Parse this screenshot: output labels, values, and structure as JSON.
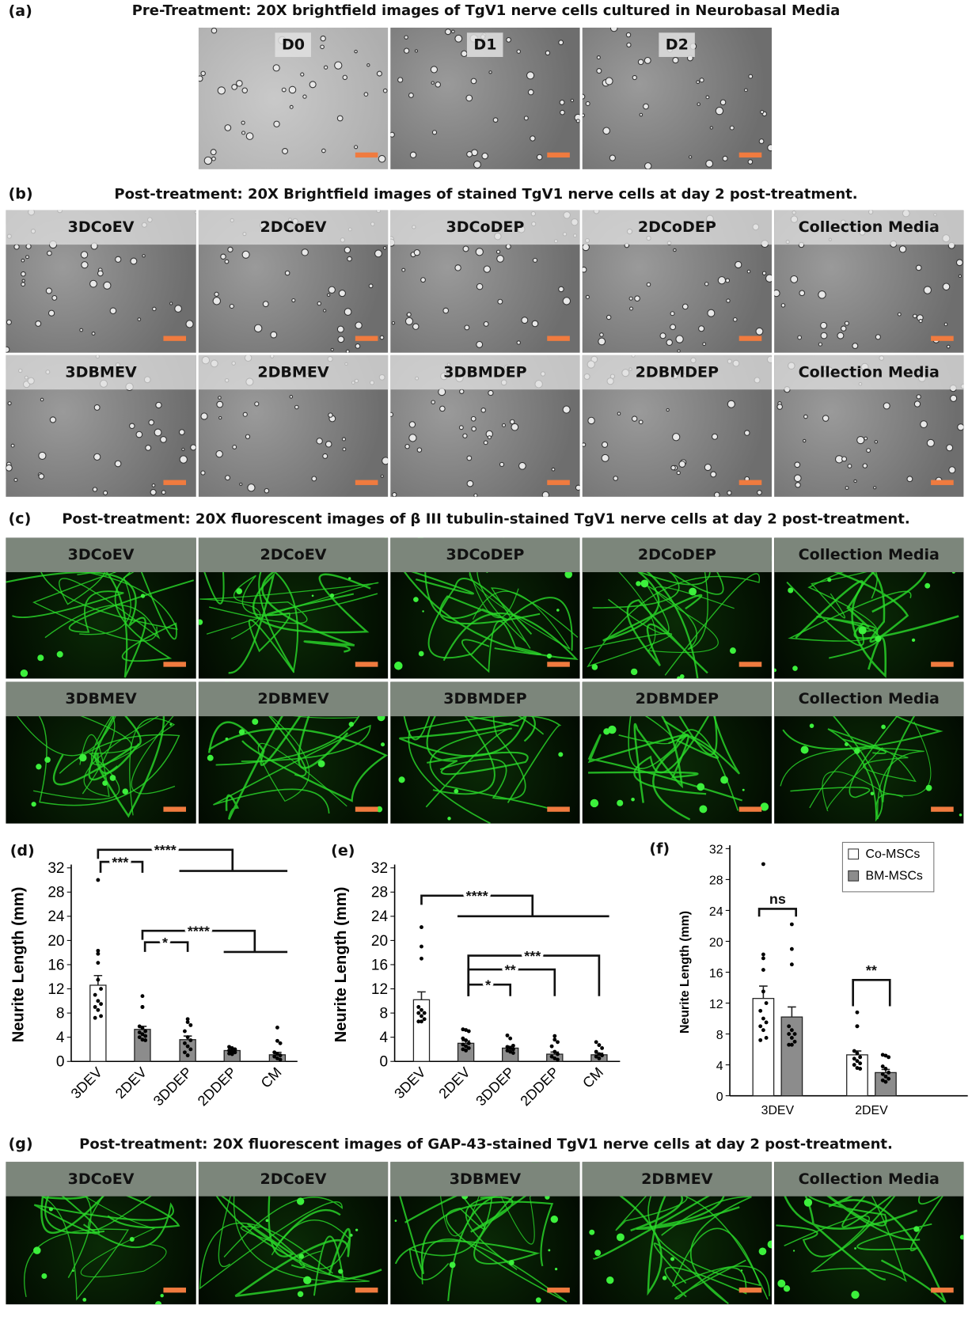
{
  "panel_a": {
    "label": "(a)",
    "title": "Pre-Treatment: 20X brightfield images of TgV1 nerve cells cultured in Neurobasal Media",
    "images": [
      "D0",
      "D1",
      "D2"
    ]
  },
  "panel_b": {
    "label": "(b)",
    "title": "Post-treatment: 20X Brightfield images of stained TgV1 nerve cells at day 2 post-treatment.",
    "row1": [
      "3DCoEV",
      "2DCoEV",
      "3DCoDEP",
      "2DCoDEP",
      "Collection Media"
    ],
    "row2": [
      "3DBMEV",
      "2DBMEV",
      "3DBMDEP",
      "2DBMDEP",
      "Collection Media"
    ]
  },
  "panel_c": {
    "label": "(c)",
    "title": "Post-treatment: 20X fluorescent images of β III tubulin-stained TgV1 nerve cells at day 2 post-treatment.",
    "row1": [
      "3DCoEV",
      "2DCoEV",
      "3DCoDEP",
      "2DCoDEP",
      "Collection Media"
    ],
    "row2": [
      "3DBMEV",
      "2DBMEV",
      "3DBMDEP",
      "2DBMDEP",
      "Collection Media"
    ]
  },
  "panel_g": {
    "label": "(g)",
    "title": "Post-treatment: 20X fluorescent images of GAP-43-stained TgV1 nerve cells at day 2 post-treatment.",
    "images": [
      "3DCoEV",
      "2DCoEV",
      "3DBMEV",
      "2DBMEV",
      "Collection Media"
    ]
  },
  "colors": {
    "scale_bar": "#f07b3f",
    "co_msc": "#ffffff",
    "bm_msc": "#8c8c8c",
    "fluorescence": "#2bdc2b"
  },
  "chart_data": [
    {
      "panel": "(d)",
      "type": "bar",
      "ylabel": "Neurite Length (mm)",
      "ylim": [
        0,
        32
      ],
      "yticks": [
        0,
        4,
        8,
        12,
        16,
        20,
        24,
        28,
        32
      ],
      "categories": [
        "3DEV",
        "2DEV",
        "3DDEP",
        "2DDEP",
        "CM"
      ],
      "bar_colors": [
        "#ffffff",
        "#8c8c8c",
        "#8c8c8c",
        "#8c8c8c",
        "#8c8c8c"
      ],
      "values": [
        12.6,
        5.3,
        3.6,
        1.8,
        1.1
      ],
      "errors": [
        1.6,
        0.5,
        0.6,
        0.15,
        0.4
      ],
      "points": [
        [
          30,
          18.3,
          17.8,
          16.3,
          13.5,
          12,
          11,
          10,
          9.5,
          9,
          8.5,
          7.5,
          7.2
        ],
        [
          10.8,
          9,
          9,
          5.8,
          5.5,
          5,
          4.8,
          4.5,
          4.2,
          4,
          3.6,
          3.5
        ],
        [
          7,
          6.5,
          6,
          5,
          4,
          3.5,
          3,
          2.5,
          2,
          1.5,
          1
        ],
        [
          2.4,
          2.2,
          2,
          1.8,
          1.6,
          1.5,
          1.3,
          1.2
        ],
        [
          5.6,
          3.4,
          3,
          1.5,
          1.2,
          1,
          0.8,
          0.5,
          0.3
        ]
      ],
      "significance": [
        {
          "label": "****",
          "from": 0,
          "to": [
            2,
            4
          ],
          "y": 35,
          "y_group": 31.5
        },
        {
          "label": "***",
          "from": 0,
          "to": [
            1,
            1
          ],
          "y": 33,
          "y_leg": 31.2
        },
        {
          "label": "****",
          "from": 1,
          "to": [
            3,
            4
          ],
          "y": 21.6,
          "y_group": 18.1
        },
        {
          "label": "*",
          "from": 1,
          "to": [
            2,
            2
          ],
          "y": 19.7,
          "y_leg": 18.1
        }
      ]
    },
    {
      "panel": "(e)",
      "type": "bar",
      "ylabel": "Neurite Length (mm)",
      "ylim": [
        0,
        32
      ],
      "yticks": [
        0,
        4,
        8,
        12,
        16,
        20,
        24,
        28,
        32
      ],
      "categories": [
        "3DEV",
        "2DEV",
        "3DDEP",
        "2DDEP",
        "CM"
      ],
      "bar_colors": [
        "#ffffff",
        "#8c8c8c",
        "#8c8c8c",
        "#8c8c8c",
        "#8c8c8c"
      ],
      "values": [
        10.2,
        3.0,
        2.2,
        1.2,
        1.1
      ],
      "errors": [
        1.3,
        0.4,
        0.3,
        0.35,
        0.25
      ],
      "points": [
        [
          22.2,
          19,
          17,
          9,
          8.5,
          8,
          8,
          7.5,
          7,
          6.6,
          6.6
        ],
        [
          5.3,
          5.2,
          5,
          3.8,
          3.5,
          3,
          2.8,
          2.5,
          2.2,
          2,
          1.8
        ],
        [
          4.3,
          3.8,
          2.6,
          2.4,
          2.2,
          2,
          1.8,
          1.6,
          1.4
        ],
        [
          4.2,
          3.6,
          3.2,
          2.5,
          1.6,
          1.2,
          0.8,
          0.5,
          0.3
        ],
        [
          3.2,
          2.7,
          2.2,
          1.6,
          1.2,
          1,
          0.8,
          0.5
        ]
      ],
      "significance": [
        {
          "label": "****",
          "from": 0,
          "to": [
            1,
            4
          ],
          "y": 27.4,
          "y_group": 24
        },
        {
          "label": "***",
          "from": 1,
          "to": [
            4,
            4
          ],
          "y": 17.5,
          "y_leg": 10.8
        },
        {
          "label": "**",
          "from": 1,
          "to": [
            3,
            3
          ],
          "y": 15.2,
          "y_leg": 10.8
        },
        {
          "label": "*",
          "from": 1,
          "to": [
            2,
            2
          ],
          "y": 12.7,
          "y_leg": 10.8
        }
      ]
    },
    {
      "panel": "(f)",
      "type": "bar",
      "ylabel": "Neurite Length (mm)",
      "ylim": [
        0,
        32
      ],
      "yticks": [
        0,
        4,
        8,
        12,
        16,
        20,
        24,
        28,
        32
      ],
      "categories": [
        "3DEV",
        "2DEV"
      ],
      "legend": "top-right",
      "series": [
        {
          "name": "Co-MSCs",
          "color": "#ffffff",
          "values": [
            12.6,
            5.3
          ],
          "errors": [
            1.6,
            0.5
          ],
          "points": [
            [
              30,
              18.3,
              17.8,
              16.3,
              13.5,
              12,
              11,
              10,
              9.5,
              9,
              8.5,
              7.5,
              7.2
            ],
            [
              10.8,
              9,
              9,
              5.8,
              5.5,
              5,
              4.8,
              4.5,
              4.2,
              4,
              3.6,
              3.5
            ]
          ]
        },
        {
          "name": "BM-MSCs",
          "color": "#8c8c8c",
          "values": [
            10.2,
            3.0
          ],
          "errors": [
            1.3,
            0.4
          ],
          "points": [
            [
              22.2,
              19,
              17,
              9,
              8.5,
              8,
              8,
              7.5,
              7,
              6.6,
              6.6
            ],
            [
              5.3,
              5.2,
              5,
              3.8,
              3.5,
              3,
              2.8,
              2.5,
              2.2,
              2,
              1.8
            ]
          ]
        }
      ],
      "significance": [
        {
          "label": "ns",
          "category": 0,
          "y": 24.2,
          "y_leg": 23.2
        },
        {
          "label": "**",
          "category": 1,
          "y": 15,
          "y_leg": 11.6
        }
      ]
    }
  ]
}
